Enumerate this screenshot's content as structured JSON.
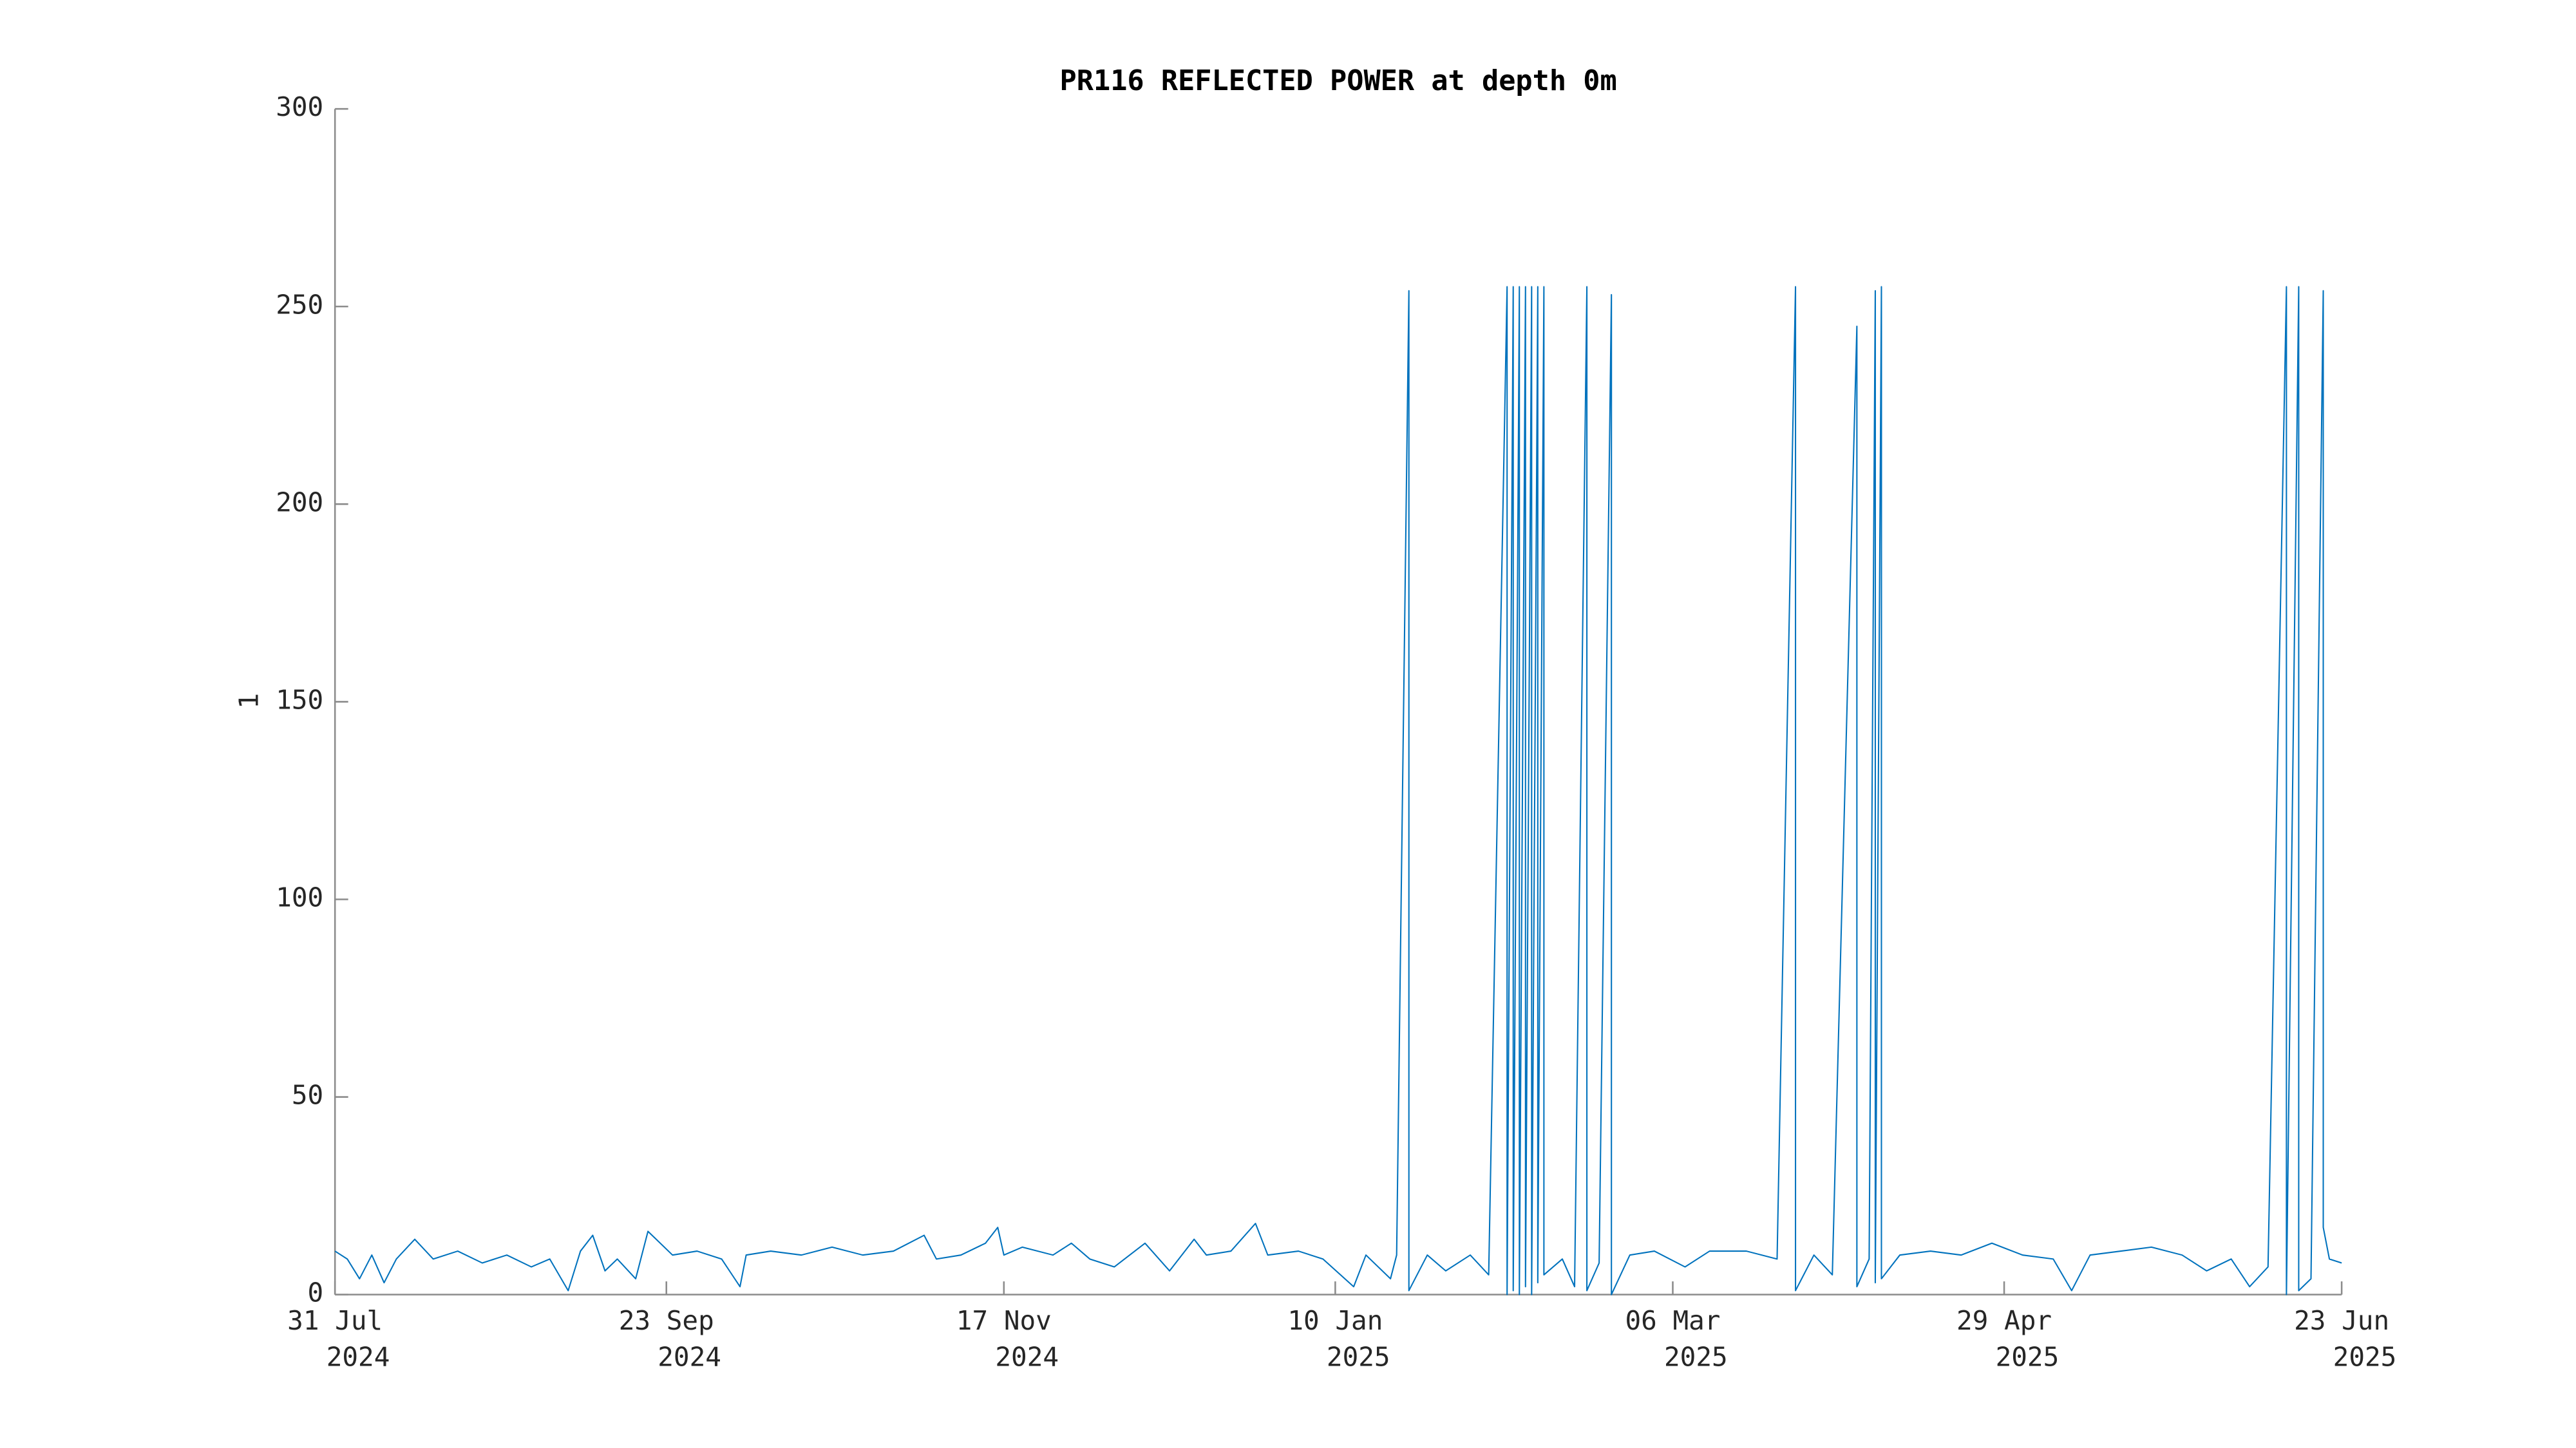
{
  "chart_data": {
    "type": "line",
    "title": "PR116 REFLECTED POWER at depth 0m",
    "y_label": "1",
    "xlim": [
      "2024-07-31",
      "2025-06-23"
    ],
    "ylim": [
      0,
      300
    ],
    "yticks": [
      0,
      50,
      100,
      150,
      200,
      250,
      300
    ],
    "xticks": [
      {
        "value": "2024-07-31",
        "label": [
          "31 Jul",
          "2024"
        ]
      },
      {
        "value": "2024-09-23",
        "label": [
          "23 Sep",
          "2024"
        ]
      },
      {
        "value": "2024-11-17",
        "label": [
          "17 Nov",
          "2024"
        ]
      },
      {
        "value": "2025-01-10",
        "label": [
          "10 Jan",
          "2025"
        ]
      },
      {
        "value": "2025-03-06",
        "label": [
          "06 Mar",
          "2025"
        ]
      },
      {
        "value": "2025-04-29",
        "label": [
          "29 Apr",
          "2025"
        ]
      },
      {
        "value": "2025-06-23",
        "label": [
          "23 Jun",
          "2025"
        ]
      }
    ],
    "grid": false,
    "x": [
      "2024-07-31",
      "2024-08-02",
      "2024-08-04",
      "2024-08-06",
      "2024-08-08",
      "2024-08-10",
      "2024-08-13",
      "2024-08-16",
      "2024-08-20",
      "2024-08-24",
      "2024-08-28",
      "2024-09-01",
      "2024-09-04",
      "2024-09-07",
      "2024-09-09",
      "2024-09-11",
      "2024-09-13",
      "2024-09-15",
      "2024-09-18",
      "2024-09-20",
      "2024-09-24",
      "2024-09-28",
      "2024-10-02",
      "2024-10-05",
      "2024-10-06",
      "2024-10-10",
      "2024-10-15",
      "2024-10-20",
      "2024-10-25",
      "2024-10-30",
      "2024-11-04",
      "2024-11-06",
      "2024-11-10",
      "2024-11-14",
      "2024-11-16",
      "2024-11-17",
      "2024-11-20",
      "2024-11-25",
      "2024-11-28",
      "2024-12-01",
      "2024-12-05",
      "2024-12-10",
      "2024-12-14",
      "2024-12-18",
      "2024-12-20",
      "2024-12-24",
      "2024-12-28",
      "2024-12-30",
      "2025-01-04",
      "2025-01-08",
      "2025-01-13",
      "2025-01-15",
      "2025-01-19",
      "2025-01-20",
      "2025-01-22",
      "2025-01-22",
      "2025-01-25",
      "2025-01-28",
      "2025-02-01",
      "2025-02-04",
      "2025-02-07",
      "2025-02-07",
      "2025-02-08",
      "2025-02-08",
      "2025-02-09",
      "2025-02-09",
      "2025-02-10",
      "2025-02-10",
      "2025-02-11",
      "2025-02-11",
      "2025-02-12",
      "2025-02-12",
      "2025-02-13",
      "2025-02-13",
      "2025-02-16",
      "2025-02-18",
      "2025-02-20",
      "2025-02-20",
      "2025-02-22",
      "2025-02-24",
      "2025-02-24",
      "2025-02-27",
      "2025-03-03",
      "2025-03-08",
      "2025-03-12",
      "2025-03-18",
      "2025-03-23",
      "2025-03-26",
      "2025-03-26",
      "2025-03-29",
      "2025-04-01",
      "2025-04-05",
      "2025-04-05",
      "2025-04-07",
      "2025-04-08",
      "2025-04-08",
      "2025-04-09",
      "2025-04-09",
      "2025-04-12",
      "2025-04-17",
      "2025-04-22",
      "2025-04-27",
      "2025-05-02",
      "2025-05-07",
      "2025-05-10",
      "2025-05-13",
      "2025-05-18",
      "2025-05-23",
      "2025-05-28",
      "2025-06-01",
      "2025-06-05",
      "2025-06-08",
      "2025-06-11",
      "2025-06-14",
      "2025-06-14",
      "2025-06-16",
      "2025-06-16",
      "2025-06-18",
      "2025-06-20",
      "2025-06-20",
      "2025-06-21",
      "2025-06-23"
    ],
    "series": [
      {
        "color": "#0072bd",
        "values": [
          11,
          9,
          4,
          10,
          3,
          9,
          14,
          9,
          11,
          8,
          10,
          7,
          9,
          1,
          11,
          15,
          6,
          9,
          4,
          16,
          10,
          11,
          9,
          2,
          10,
          11,
          10,
          12,
          10,
          11,
          15,
          9,
          10,
          13,
          17,
          10,
          12,
          10,
          13,
          9,
          7,
          13,
          6,
          14,
          10,
          11,
          18,
          10,
          11,
          9,
          2,
          10,
          4,
          10,
          254,
          1,
          10,
          6,
          10,
          5,
          255,
          0,
          255,
          1,
          255,
          0,
          255,
          2,
          255,
          0,
          255,
          3,
          255,
          5,
          9,
          2,
          255,
          1,
          8,
          253,
          0,
          10,
          11,
          7,
          11,
          11,
          9,
          255,
          1,
          10,
          5,
          245,
          2,
          9,
          254,
          3,
          255,
          4,
          10,
          11,
          10,
          13,
          10,
          9,
          1,
          10,
          11,
          12,
          10,
          6,
          9,
          2,
          7,
          255,
          0,
          255,
          1,
          4,
          254,
          17,
          9,
          8
        ]
      }
    ]
  }
}
